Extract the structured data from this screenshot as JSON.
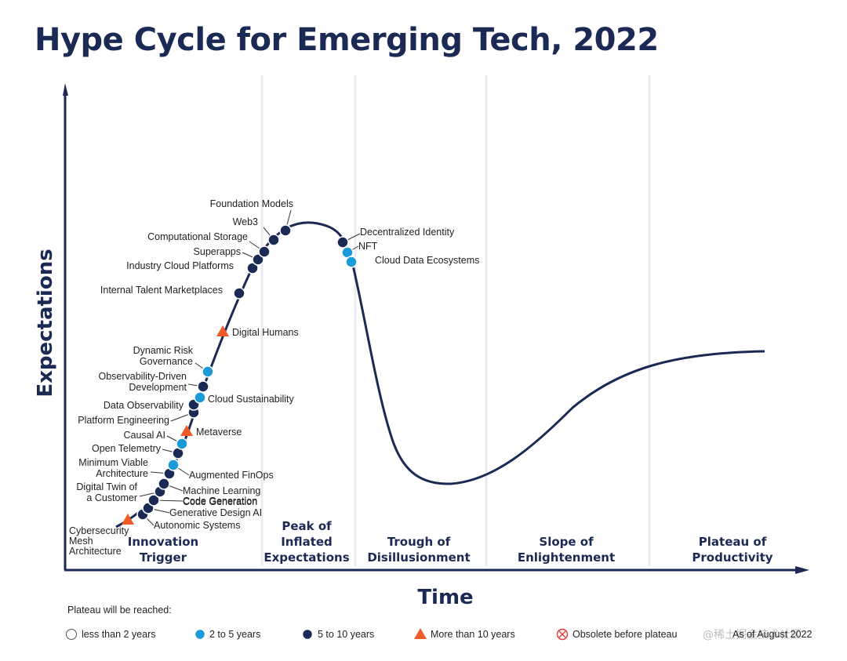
{
  "colors": {
    "navy": "#1b2a55",
    "light_blue": "#1a9bd7",
    "orange": "#f05a28",
    "obsolete": "#e03a3a",
    "separator": "#e9ebef"
  },
  "watermark": "@稀土掘金技术社区",
  "chart_data": {
    "type": "line",
    "title": "Hype Cycle for Emerging Tech, 2022",
    "xlabel": "Time",
    "ylabel": "Expectations",
    "phases": [
      "Innovation\nTrigger",
      "Peak of\nInflated\nExpectations",
      "Trough of\nDisillusionment",
      "Slope of\nEnlightenment",
      "Plateau of\nProductivity"
    ],
    "legend_title": "Plateau will be reached:",
    "legend": [
      {
        "label": "less than 2 years",
        "marker": "circle-open"
      },
      {
        "label": "2 to 5 years",
        "marker": "circle-light"
      },
      {
        "label": "5 to 10 years",
        "marker": "circle-dark"
      },
      {
        "label": "More than 10 years",
        "marker": "triangle"
      },
      {
        "label": "Obsolete before plateau",
        "marker": "obsolete"
      }
    ],
    "as_of": "As of August 2022",
    "technologies": [
      {
        "name": "Cybersecurity\nMesh\nArchitecture",
        "category": "More than 10 years"
      },
      {
        "name": "Autonomic Systems",
        "category": "5 to 10 years"
      },
      {
        "name": "Generative Design AI",
        "category": "5 to 10 years"
      },
      {
        "name": "Code Generation",
        "category": "5 to 10 years"
      },
      {
        "name": "Digital Twin of\na Customer",
        "category": "5 to 10 years"
      },
      {
        "name": "Machine Learning\nCode Generation",
        "category": "5 to 10 years"
      },
      {
        "name": "Minimum Viable\nArchitecture",
        "category": "5 to 10 years"
      },
      {
        "name": "Augmented FinOps",
        "category": "2 to 5 years"
      },
      {
        "name": "Open Telemetry",
        "category": "5 to 10 years"
      },
      {
        "name": "Causal AI",
        "category": "2 to 5 years"
      },
      {
        "name": "Metaverse",
        "category": "More than 10 years"
      },
      {
        "name": "Platform Engineering",
        "category": "5 to 10 years"
      },
      {
        "name": "Data Observability",
        "category": "5 to 10 years"
      },
      {
        "name": "Cloud Sustainability",
        "category": "2 to 5 years"
      },
      {
        "name": "Observability-Driven\nDevelopment",
        "category": "5 to 10 years"
      },
      {
        "name": "Dynamic Risk\nGovernance",
        "category": "2 to 5 years"
      },
      {
        "name": "Digital Humans",
        "category": "More than 10 years"
      },
      {
        "name": "Internal Talent Marketplaces",
        "category": "5 to 10 years"
      },
      {
        "name": "Industry Cloud Platforms",
        "category": "5 to 10 years"
      },
      {
        "name": "Superapps",
        "category": "5 to 10 years"
      },
      {
        "name": "Computational Storage",
        "category": "5 to 10 years"
      },
      {
        "name": "Web3",
        "category": "5 to 10 years"
      },
      {
        "name": "Foundation Models",
        "category": "5 to 10 years"
      },
      {
        "name": "Decentralized Identity",
        "category": "5 to 10 years"
      },
      {
        "name": "NFT",
        "category": "2 to 5 years"
      },
      {
        "name": "Cloud Data Ecosystems",
        "category": "2 to 5 years"
      }
    ]
  }
}
